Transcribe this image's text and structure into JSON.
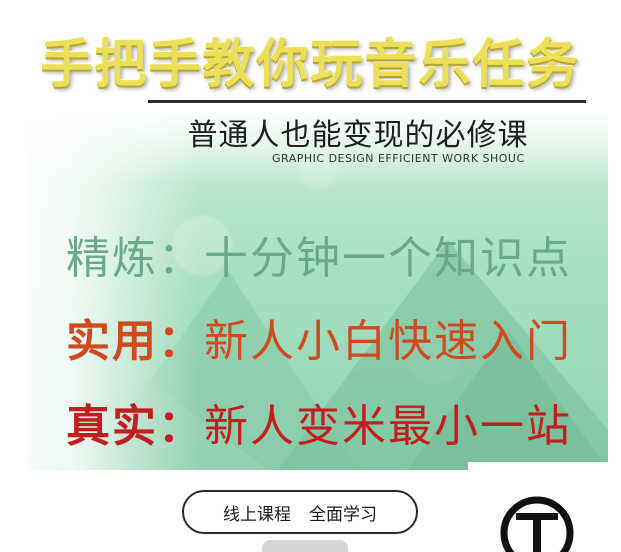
{
  "title": "手把手教你玩音乐任务",
  "subtitle": "普通人也能变现的必修课",
  "tagline": "GRAPHIC DESIGN EFFICIENT WORK SHOUC",
  "features": [
    {
      "label": "精炼：",
      "text": "十分钟一个知识点"
    },
    {
      "label": "实用：",
      "text": "新人小白快速入门"
    },
    {
      "label": "真实：",
      "text": "新人变米最小一站"
    }
  ],
  "pill": {
    "left": "线上课程",
    "right": "全面学习"
  },
  "colors": {
    "title": "#ece05a",
    "feature1": "#6aa98c",
    "feature2": "#d04a1e",
    "feature3": "#c31d1d",
    "background_green": "#a9e0c3"
  },
  "logo_icon": "t-circle-logo-icon"
}
